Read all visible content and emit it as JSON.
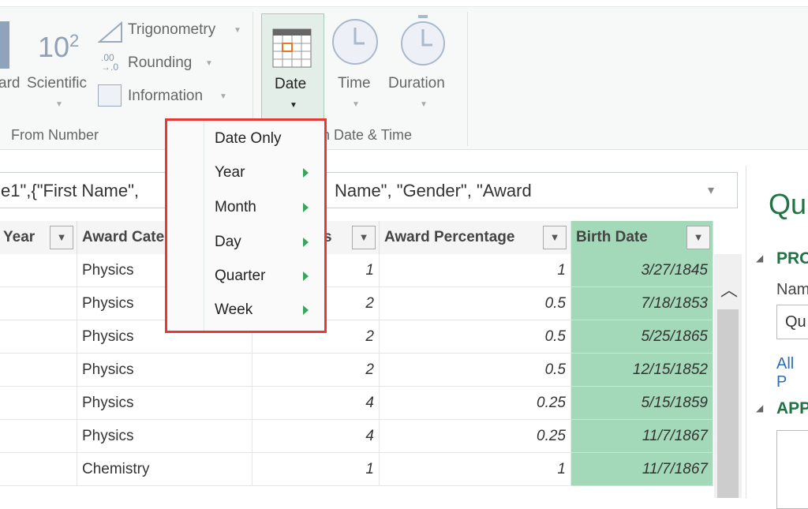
{
  "ribbon": {
    "standard_partial": "ard",
    "scientific": "Scientific",
    "scientific_glyph": "10",
    "scientific_exp": "2",
    "trigonometry": "Trigonometry",
    "rounding": "Rounding",
    "information": "Information",
    "group_from_number": "From Number",
    "date": "Date",
    "time": "Time",
    "duration": "Duration",
    "group_date_time": "n Date & Time",
    "accent": "#217346"
  },
  "formula_bar": {
    "text_left": "e1\",{\"First Name\",",
    "text_right": "Name\", \"Gender\", \"Award"
  },
  "date_menu": {
    "items": [
      {
        "label": "Date Only",
        "submenu": false
      },
      {
        "label": "Year",
        "submenu": true
      },
      {
        "label": "Month",
        "submenu": true
      },
      {
        "label": "Day",
        "submenu": true
      },
      {
        "label": "Quarter",
        "submenu": true
      },
      {
        "label": "Week",
        "submenu": true
      }
    ]
  },
  "grid": {
    "columns": [
      "Year",
      "Award Category",
      "s",
      "Award Percentage",
      "Birth Date"
    ],
    "rows": [
      [
        "",
        "Physics",
        "1",
        "1",
        "3/27/1845"
      ],
      [
        "",
        "Physics",
        "2",
        "0.5",
        "7/18/1853"
      ],
      [
        "",
        "Physics",
        "2",
        "0.5",
        "5/25/1865"
      ],
      [
        "",
        "Physics",
        "2",
        "0.5",
        "12/15/1852"
      ],
      [
        "",
        "Physics",
        "4",
        "0.25",
        "5/15/1859"
      ],
      [
        "",
        "Physics",
        "4",
        "0.25",
        "11/7/1867"
      ],
      [
        "",
        "Chemistry",
        "1",
        "1",
        "11/7/1867"
      ]
    ],
    "selected_column_color": "#a3d8b9"
  },
  "query_pane": {
    "title": "Qu",
    "properties": "PRO",
    "name_label": "Nam",
    "name_value": "Qu",
    "all_properties": "All P",
    "applied_steps": "APP"
  }
}
